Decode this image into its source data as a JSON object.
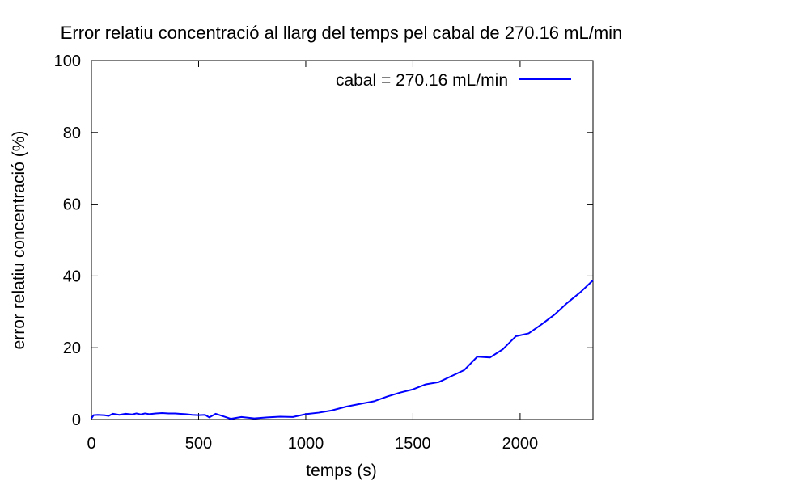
{
  "chart_data": {
    "type": "line",
    "title": "Error relatiu concentració al llarg del temps pel cabal de 270.16 mL/min",
    "xlabel": "temps (s)",
    "ylabel": "error relatiu concentració (%)",
    "xlim": [
      0,
      2340
    ],
    "ylim": [
      0,
      100
    ],
    "x_ticks": [
      0,
      500,
      1000,
      1500,
      2000
    ],
    "y_ticks": [
      0,
      20,
      40,
      60,
      80,
      100
    ],
    "x_tick_labels": [
      "0",
      "500",
      "1000",
      "1500",
      "2000"
    ],
    "y_tick_labels": [
      "0",
      "20",
      "40",
      "60",
      "80",
      "100"
    ],
    "grid": false,
    "legend_position": "top-right",
    "series": [
      {
        "name": "cabal = 270.16 mL/min",
        "color": "#0000ff",
        "x": [
          0,
          10,
          30,
          60,
          80,
          100,
          130,
          160,
          190,
          210,
          230,
          250,
          270,
          300,
          330,
          360,
          390,
          410,
          440,
          470,
          500,
          530,
          550,
          580,
          600,
          650,
          700,
          760,
          820,
          880,
          940,
          1000,
          1060,
          1120,
          1190,
          1250,
          1320,
          1380,
          1440,
          1500,
          1560,
          1620,
          1680,
          1740,
          1800,
          1860,
          1920,
          1980,
          2040,
          2100,
          2160,
          2220,
          2280,
          2340
        ],
        "y": [
          0.3,
          1.2,
          1.3,
          1.2,
          1.0,
          1.6,
          1.3,
          1.6,
          1.4,
          1.7,
          1.4,
          1.7,
          1.5,
          1.7,
          1.8,
          1.7,
          1.7,
          1.6,
          1.5,
          1.3,
          1.2,
          1.3,
          0.6,
          1.6,
          1.2,
          0.2,
          0.7,
          0.3,
          0.6,
          0.8,
          0.7,
          1.5,
          1.9,
          2.5,
          3.6,
          4.3,
          5.1,
          6.4,
          7.5,
          8.4,
          9.8,
          10.4,
          12.1,
          13.8,
          17.5,
          17.3,
          19.6,
          23.2,
          24.0,
          26.5,
          29.2,
          32.5,
          35.4,
          38.8
        ]
      }
    ]
  }
}
